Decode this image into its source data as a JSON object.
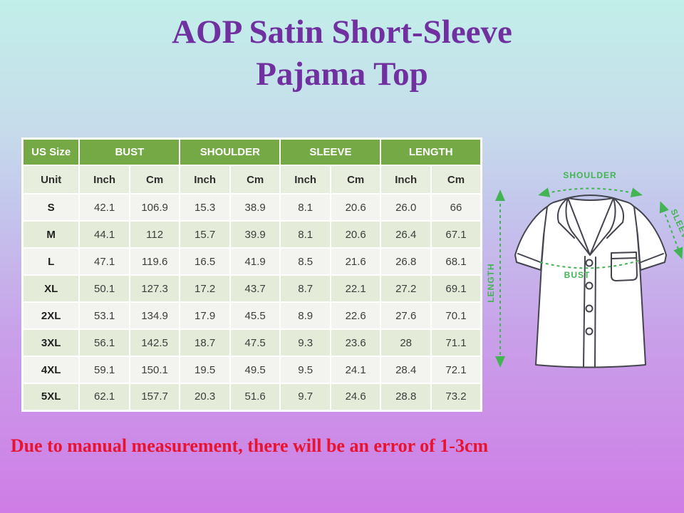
{
  "title": {
    "line1": "AOP Satin Short-Sleeve",
    "line2": "Pajama Top"
  },
  "size_chart": {
    "group_headers": [
      {
        "label": "US Size",
        "span": 1
      },
      {
        "label": "BUST",
        "span": 2
      },
      {
        "label": "SHOULDER",
        "span": 2
      },
      {
        "label": "SLEEVE",
        "span": 2
      },
      {
        "label": "LENGTH",
        "span": 2
      }
    ],
    "unit_row": [
      "Unit",
      "Inch",
      "Cm",
      "Inch",
      "Cm",
      "Inch",
      "Cm",
      "Inch",
      "Cm"
    ],
    "rows": [
      {
        "size": "S",
        "values": [
          "42.1",
          "106.9",
          "15.3",
          "38.9",
          "8.1",
          "20.6",
          "26.0",
          "66"
        ]
      },
      {
        "size": "M",
        "values": [
          "44.1",
          "112",
          "15.7",
          "39.9",
          "8.1",
          "20.6",
          "26.4",
          "67.1"
        ]
      },
      {
        "size": "L",
        "values": [
          "47.1",
          "119.6",
          "16.5",
          "41.9",
          "8.5",
          "21.6",
          "26.8",
          "68.1"
        ]
      },
      {
        "size": "XL",
        "values": [
          "50.1",
          "127.3",
          "17.2",
          "43.7",
          "8.7",
          "22.1",
          "27.2",
          "69.1"
        ]
      },
      {
        "size": "2XL",
        "values": [
          "53.1",
          "134.9",
          "17.9",
          "45.5",
          "8.9",
          "22.6",
          "27.6",
          "70.1"
        ]
      },
      {
        "size": "3XL",
        "values": [
          "56.1",
          "142.5",
          "18.7",
          "47.5",
          "9.3",
          "23.6",
          "28",
          "71.1"
        ]
      },
      {
        "size": "4XL",
        "values": [
          "59.1",
          "150.1",
          "19.5",
          "49.5",
          "9.5",
          "24.1",
          "28.4",
          "72.1"
        ]
      },
      {
        "size": "5XL",
        "values": [
          "62.1",
          "157.7",
          "20.3",
          "51.6",
          "9.7",
          "24.6",
          "28.8",
          "73.2"
        ]
      }
    ]
  },
  "diagram_labels": {
    "shoulder": "SHOULDER",
    "sleeve": "SLEEVE",
    "length": "LENGTH",
    "bust": "BUST"
  },
  "note": "Due to manual measurement, there will be an error of 1-3cm",
  "colors": {
    "title_purple": "#7030a0",
    "header_green": "#74a945",
    "arrow_green": "#43b454",
    "note_red": "#e8132f",
    "bg_top_mint": "#c2efe9",
    "bg_bottom_orchid": "#cf7ce6"
  }
}
